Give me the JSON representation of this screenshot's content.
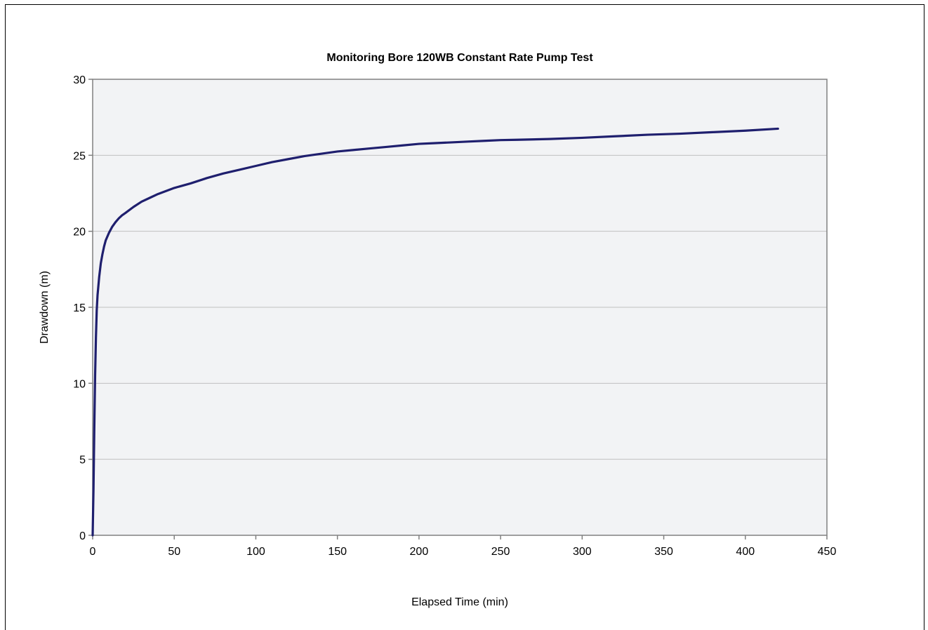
{
  "chart_data": {
    "type": "line",
    "title": "Monitoring Bore 120WB Constant Rate Pump Test",
    "xlabel": "Elapsed Time (min)",
    "ylabel": "Drawdown  (m)",
    "xlim": [
      0,
      450
    ],
    "ylim": [
      0,
      30
    ],
    "x_ticks": [
      0,
      50,
      100,
      150,
      200,
      250,
      300,
      350,
      400,
      450
    ],
    "y_ticks": [
      0,
      5,
      10,
      15,
      20,
      25,
      30
    ],
    "grid": "horizontal",
    "legend": "none",
    "colors": {
      "line": "#1f1f6e",
      "plot_background": "#f2f3f5",
      "gridline": "#c0c0c0",
      "plot_border": "#808080"
    },
    "series": [
      {
        "x": [
          0,
          0.5,
          1,
          1.5,
          2,
          2.5,
          3,
          4,
          5,
          6,
          7,
          8,
          10,
          12,
          14,
          16,
          18,
          20,
          25,
          30,
          35,
          40,
          45,
          50,
          60,
          70,
          80,
          90,
          100,
          110,
          120,
          130,
          140,
          150,
          160,
          170,
          180,
          190,
          200,
          210,
          220,
          230,
          240,
          250,
          260,
          280,
          300,
          320,
          340,
          360,
          380,
          400,
          420
        ],
        "y": [
          0,
          3,
          7,
          10.5,
          13,
          14.8,
          15.8,
          17,
          17.9,
          18.5,
          19,
          19.4,
          19.9,
          20.3,
          20.6,
          20.85,
          21.05,
          21.2,
          21.6,
          21.95,
          22.2,
          22.45,
          22.65,
          22.85,
          23.15,
          23.5,
          23.8,
          24.05,
          24.3,
          24.55,
          24.75,
          24.95,
          25.1,
          25.25,
          25.35,
          25.45,
          25.55,
          25.65,
          25.75,
          25.8,
          25.85,
          25.9,
          25.95,
          26.0,
          26.02,
          26.07,
          26.15,
          26.25,
          26.35,
          26.42,
          26.52,
          26.62,
          26.75
        ]
      }
    ]
  }
}
